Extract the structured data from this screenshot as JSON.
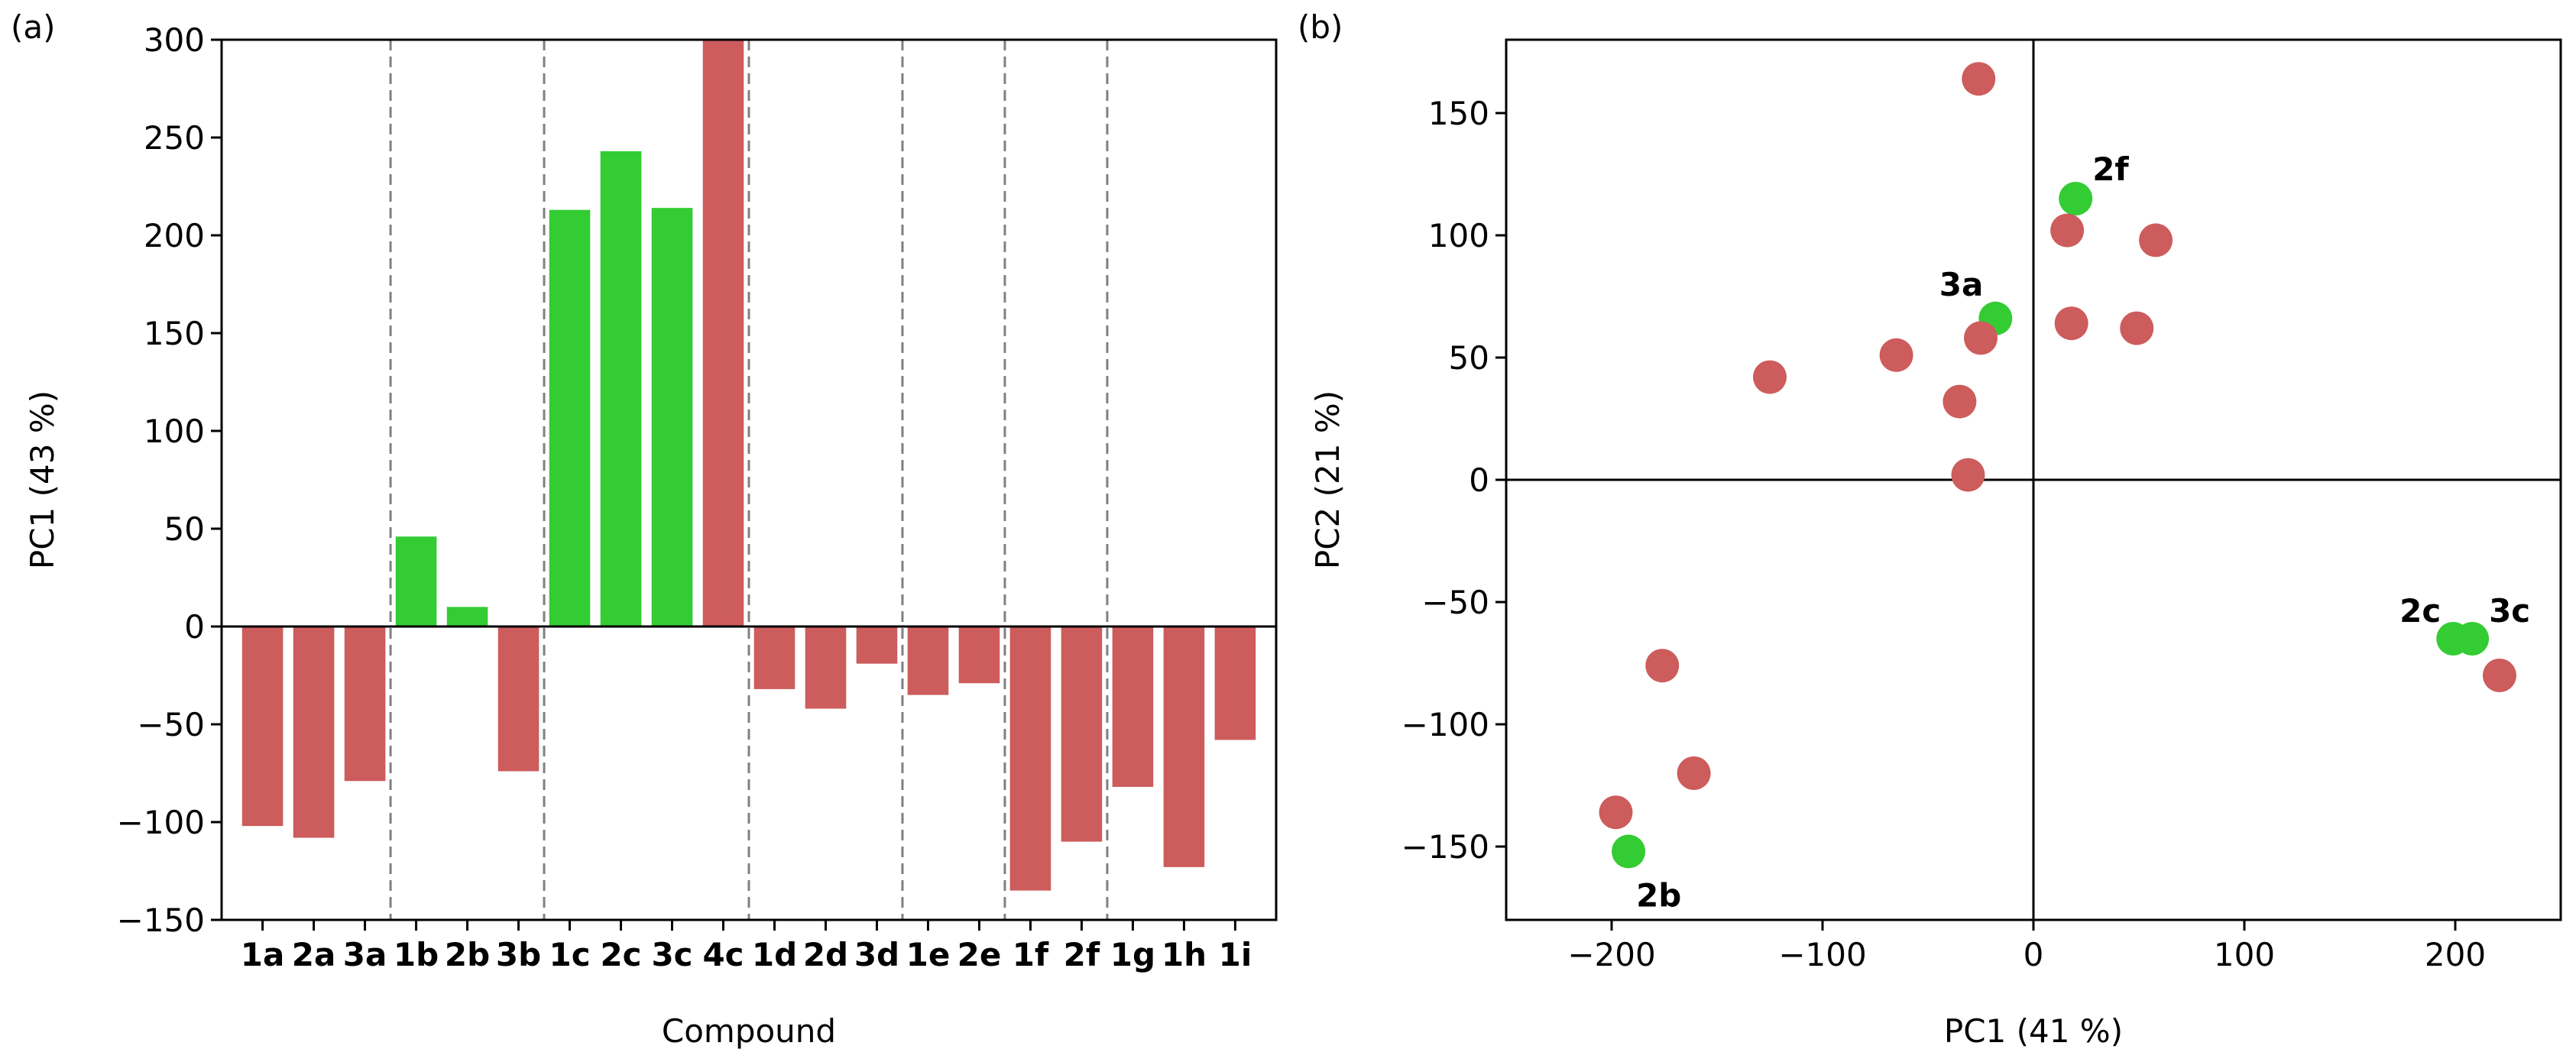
{
  "colors": {
    "negative": "#cd5c5c",
    "highlight": "#33cc33",
    "frame": "#000000",
    "divider": "#808080"
  },
  "chart_data": [
    {
      "panel_label": "(a)",
      "type": "bar",
      "title": "",
      "xlabel": "Compound",
      "ylabel": "PC1 (43 %)",
      "ylim": [
        -150,
        300
      ],
      "yticks": [
        -150,
        -100,
        -50,
        0,
        50,
        100,
        150,
        200,
        250,
        300
      ],
      "ytick_labels": [
        "−150",
        "−100",
        "−50",
        "0",
        "50",
        "100",
        "150",
        "200",
        "250",
        "300"
      ],
      "categories": [
        "1a",
        "2a",
        "3a",
        "1b",
        "2b",
        "3b",
        "1c",
        "2c",
        "3c",
        "4c",
        "1d",
        "2d",
        "3d",
        "1e",
        "2e",
        "1f",
        "2f",
        "1g",
        "1h",
        "1i"
      ],
      "values": [
        -102,
        -108,
        -79,
        46,
        10,
        -74,
        213,
        243,
        214,
        300,
        -32,
        -42,
        -19,
        -35,
        -29,
        -135,
        -110,
        -82,
        -123,
        -58
      ],
      "highlighted": [
        false,
        false,
        false,
        true,
        true,
        false,
        true,
        true,
        true,
        false,
        false,
        false,
        false,
        false,
        false,
        false,
        false,
        false,
        false,
        false
      ],
      "group_dividers_after_index": [
        2,
        5,
        9,
        12,
        14,
        16
      ]
    },
    {
      "panel_label": "(b)",
      "type": "scatter",
      "title": "",
      "xlabel": "PC1 (41 %)",
      "ylabel": "PC2 (21 %)",
      "xlim": [
        -250,
        250
      ],
      "ylim": [
        -180,
        180
      ],
      "xticks": [
        -200,
        -100,
        0,
        100,
        200
      ],
      "xtick_labels": [
        "−200",
        "−100",
        "0",
        "100",
        "200"
      ],
      "yticks": [
        -150,
        -100,
        -50,
        0,
        50,
        100,
        150
      ],
      "ytick_labels": [
        "−150",
        "−100",
        "−50",
        "0",
        "50",
        "100",
        "150"
      ],
      "points": [
        {
          "x": -26,
          "y": 164,
          "highlight": false,
          "label": ""
        },
        {
          "x": 20,
          "y": 115,
          "highlight": true,
          "label": "2f"
        },
        {
          "x": 16,
          "y": 102,
          "highlight": false,
          "label": ""
        },
        {
          "x": 58,
          "y": 98,
          "highlight": false,
          "label": ""
        },
        {
          "x": -18,
          "y": 66,
          "highlight": true,
          "label": "3a"
        },
        {
          "x": 18,
          "y": 64,
          "highlight": false,
          "label": ""
        },
        {
          "x": 49,
          "y": 62,
          "highlight": false,
          "label": ""
        },
        {
          "x": -25,
          "y": 58,
          "highlight": false,
          "label": ""
        },
        {
          "x": -65,
          "y": 51,
          "highlight": false,
          "label": ""
        },
        {
          "x": -125,
          "y": 42,
          "highlight": false,
          "label": ""
        },
        {
          "x": -35,
          "y": 32,
          "highlight": false,
          "label": ""
        },
        {
          "x": -31,
          "y": 2,
          "highlight": false,
          "label": ""
        },
        {
          "x": 199,
          "y": -65,
          "highlight": true,
          "label": "2c"
        },
        {
          "x": 208,
          "y": -65,
          "highlight": true,
          "label": "3c"
        },
        {
          "x": 221,
          "y": -80,
          "highlight": false,
          "label": ""
        },
        {
          "x": -176,
          "y": -76,
          "highlight": false,
          "label": ""
        },
        {
          "x": -161,
          "y": -120,
          "highlight": false,
          "label": ""
        },
        {
          "x": -198,
          "y": -136,
          "highlight": false,
          "label": ""
        },
        {
          "x": -192,
          "y": -152,
          "highlight": true,
          "label": "2b"
        }
      ]
    }
  ]
}
